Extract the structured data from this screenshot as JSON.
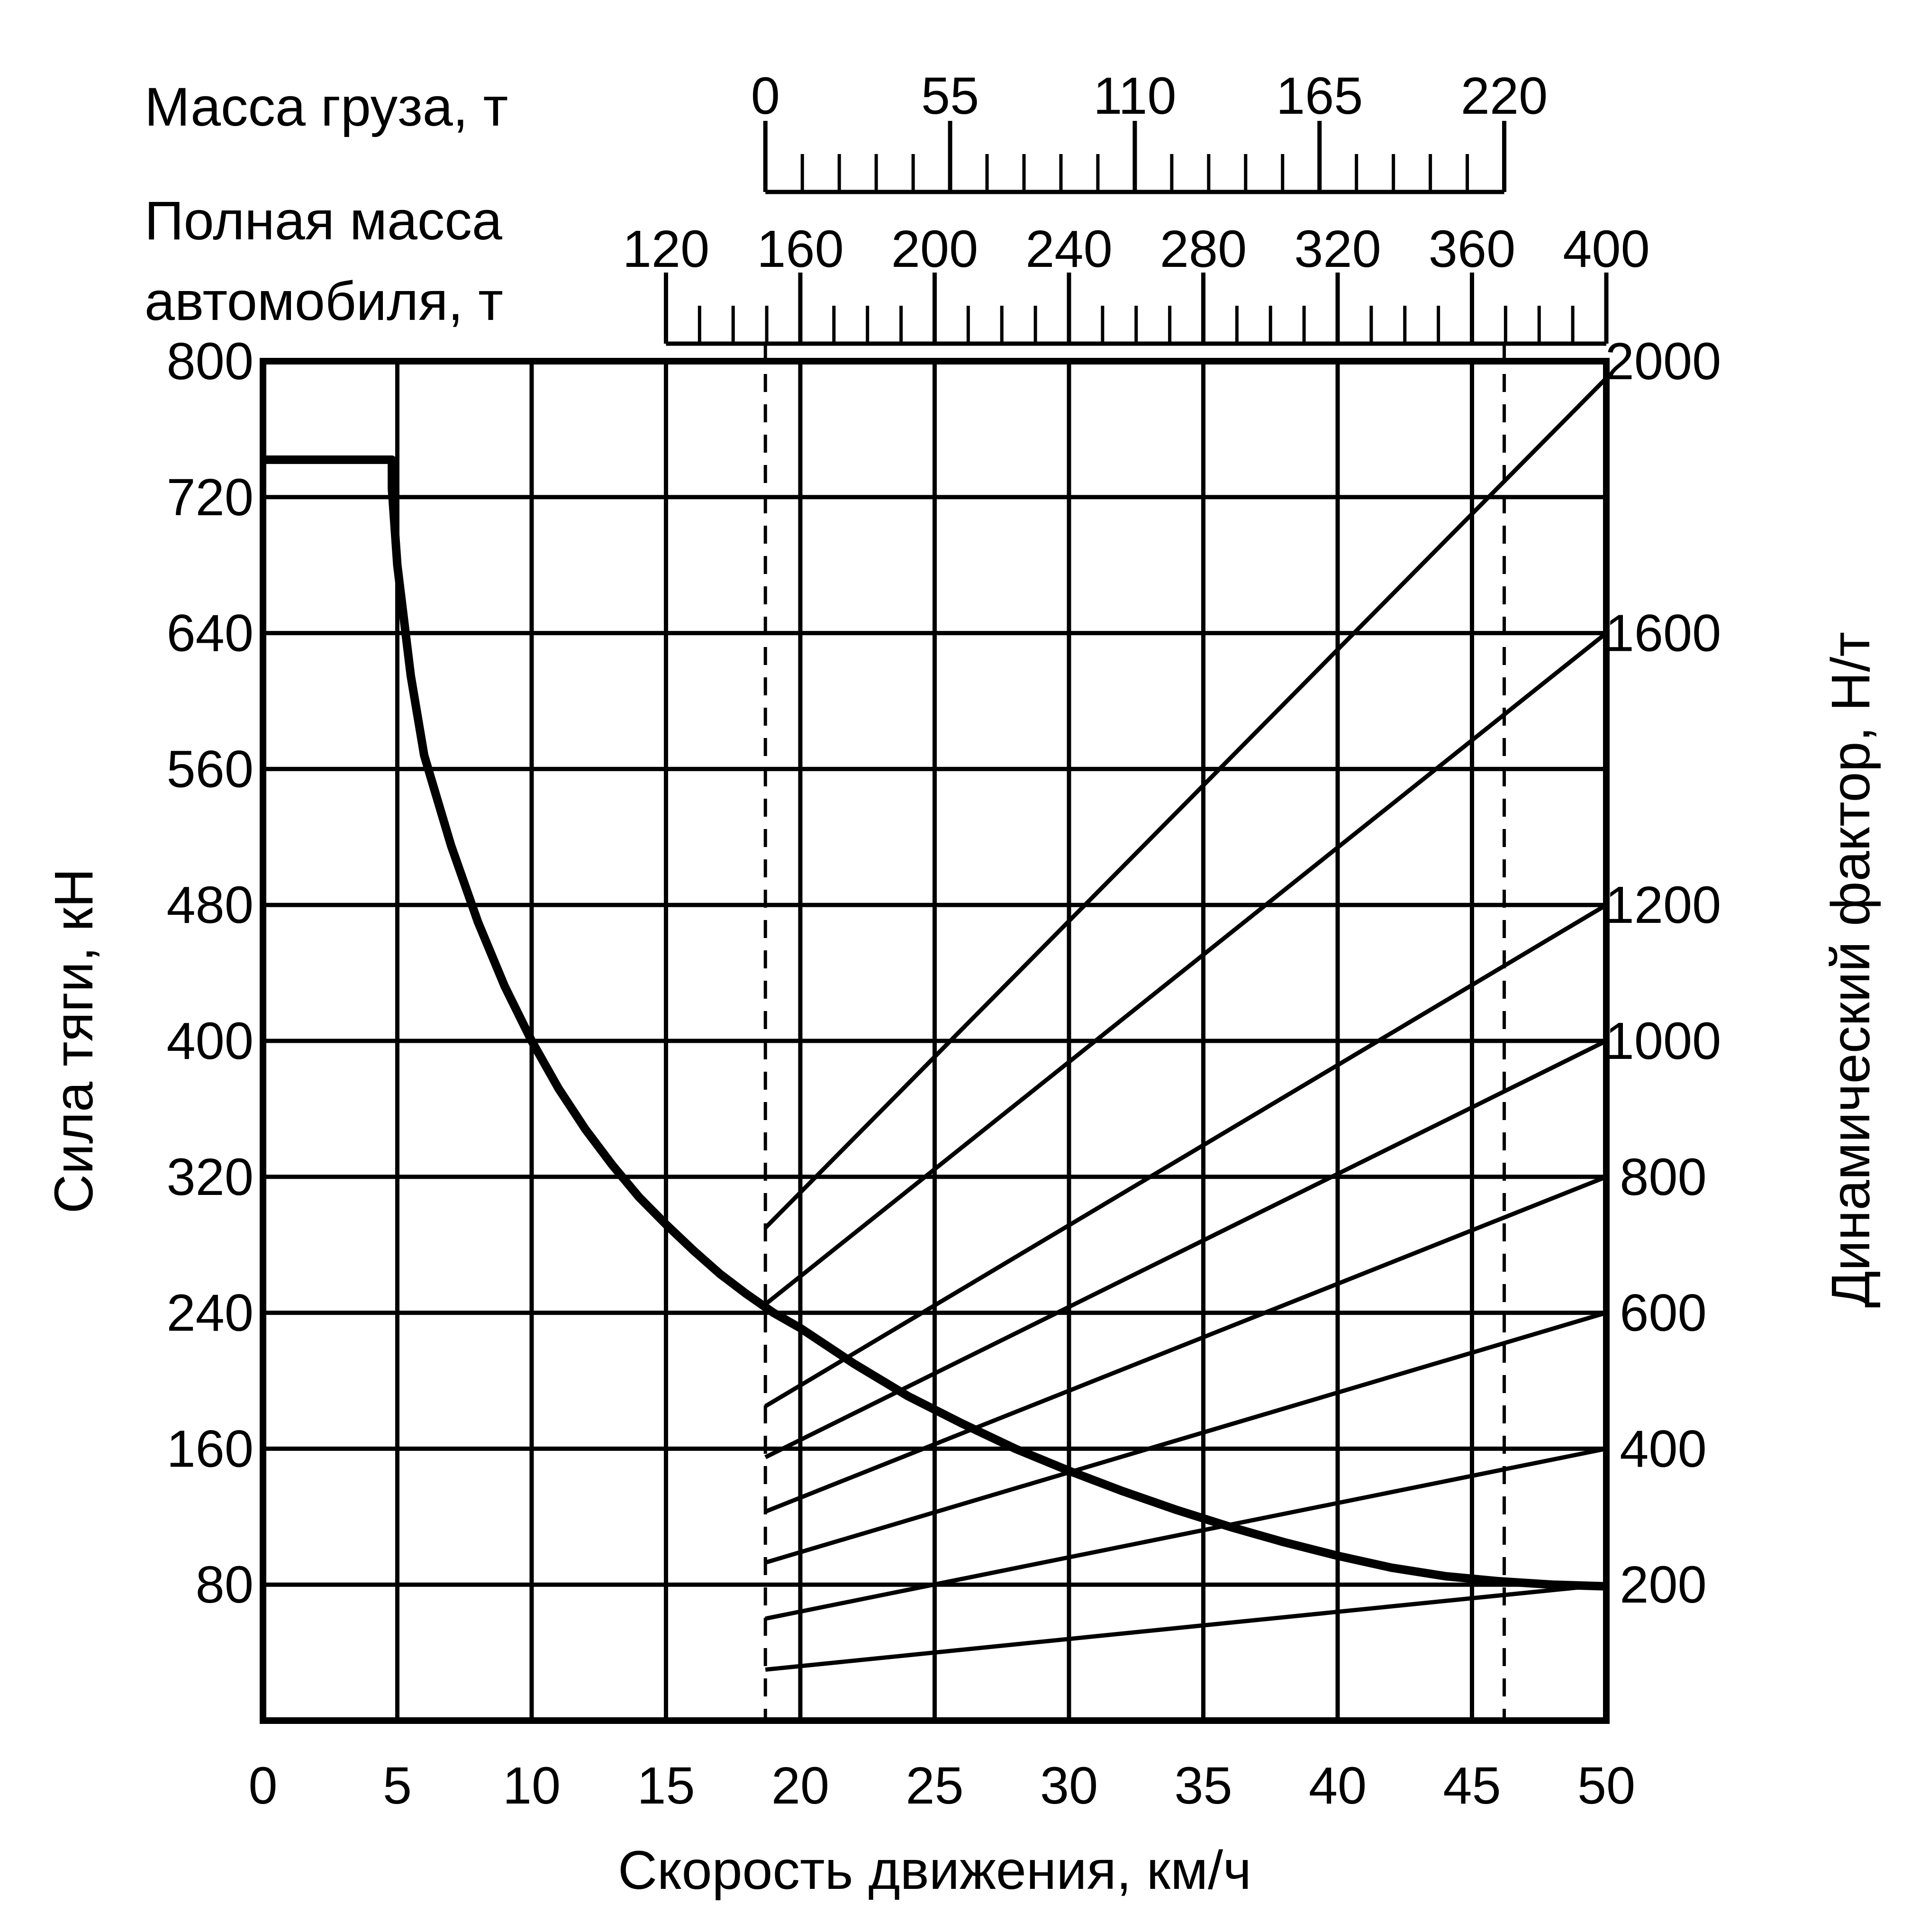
{
  "chart_data": {
    "type": "line",
    "xlabel": "Скорость движения, км/ч",
    "ylabel": "Сила тяги, кН",
    "y2label": "Динамический фактор, Н/т",
    "cargo_axis_label": "Масса груза, т",
    "total_mass_axis_label_line1": "Полная масса",
    "total_mass_axis_label_line2": "автомобиля, т",
    "xlim": [
      0,
      50
    ],
    "ylim": [
      0,
      800
    ],
    "x_ticks": [
      0,
      5,
      10,
      15,
      20,
      25,
      30,
      35,
      40,
      45,
      50
    ],
    "y_ticks": [
      80,
      160,
      240,
      320,
      400,
      480,
      560,
      640,
      720,
      800
    ],
    "y2_ticks": [
      200,
      400,
      600,
      800,
      1000,
      1200,
      1600,
      2000
    ],
    "cargo_ticks": [
      0,
      55,
      110,
      165,
      220
    ],
    "cargo_range": [
      0,
      220
    ],
    "total_mass_ticks": [
      120,
      160,
      200,
      240,
      280,
      320,
      360,
      400
    ],
    "total_mass_range": [
      120,
      400
    ],
    "grid": true,
    "reference_lines_x": [
      18.7,
      46.2
    ],
    "traction_curve": {
      "x": [
        0,
        4.8,
        4.8,
        5,
        5.5,
        6,
        7,
        8,
        9,
        10,
        11,
        12,
        13,
        14,
        15,
        16,
        17,
        18,
        19,
        20,
        22,
        24,
        26,
        28,
        30,
        32,
        34,
        36,
        38,
        40,
        42,
        44,
        46,
        48,
        50
      ],
      "y": [
        742,
        742,
        725,
        680,
        615,
        568,
        515,
        470,
        432,
        400,
        372,
        348,
        327,
        308,
        292,
        277,
        263,
        251,
        240,
        231,
        210,
        191,
        175,
        160,
        147,
        135,
        124,
        114,
        105,
        97,
        90,
        85,
        82,
        80,
        79
      ]
    },
    "dynamic_factor_lines": [
      {
        "x": [
          18.7,
          50
        ],
        "y": [
          290,
          790
        ]
      },
      {
        "x": [
          18.7,
          50
        ],
        "y": [
          245,
          640
        ]
      },
      {
        "x": [
          18.7,
          50
        ],
        "y": [
          185,
          480
        ]
      },
      {
        "x": [
          18.7,
          50
        ],
        "y": [
          155,
          400
        ]
      },
      {
        "x": [
          18.7,
          50
        ],
        "y": [
          123,
          320
        ]
      },
      {
        "x": [
          18.7,
          50
        ],
        "y": [
          93,
          240
        ]
      },
      {
        "x": [
          18.7,
          50
        ],
        "y": [
          60,
          160
        ]
      },
      {
        "x": [
          18.7,
          50
        ],
        "y": [
          30,
          80
        ]
      }
    ]
  }
}
